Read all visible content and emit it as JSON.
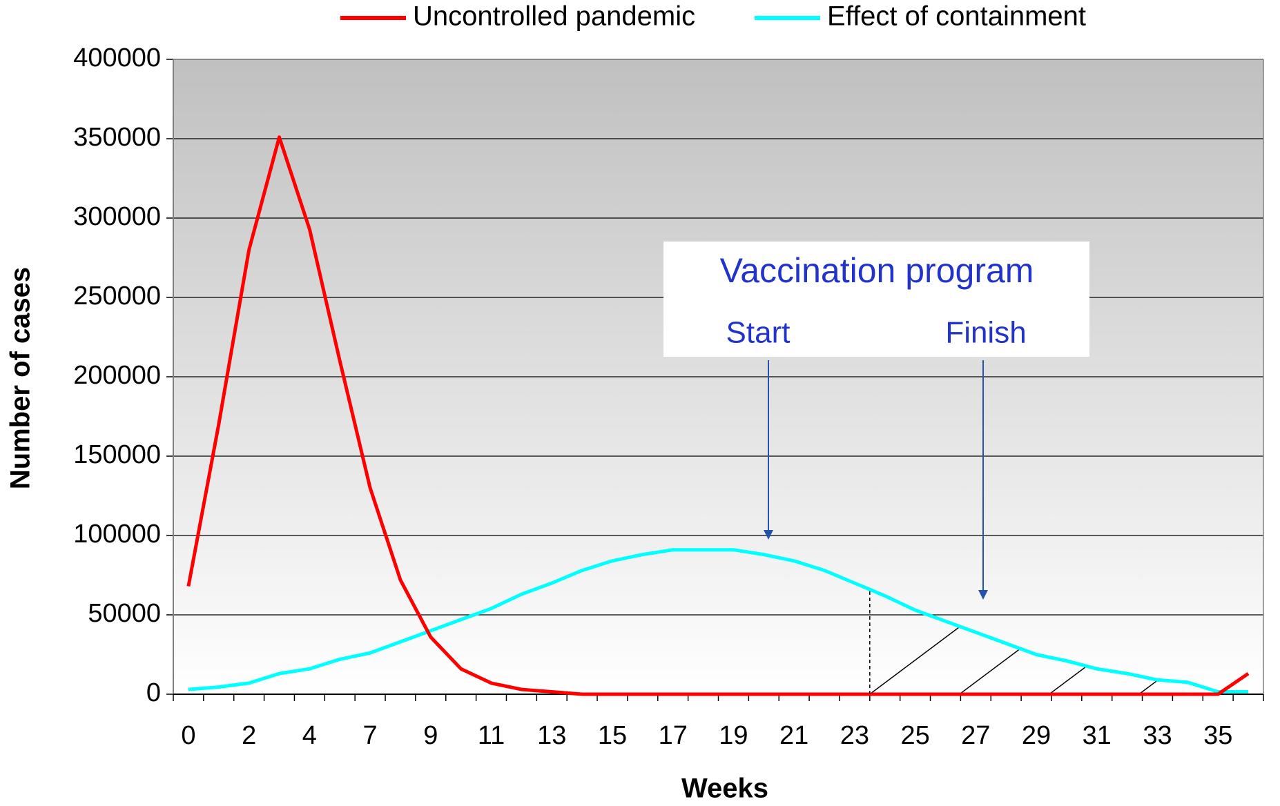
{
  "chart_data": {
    "type": "line",
    "categories": [
      "0",
      null,
      "2",
      null,
      "4",
      null,
      "7",
      null,
      "9",
      null,
      "11",
      null,
      "13",
      null,
      "15",
      null,
      "17",
      null,
      "19",
      null,
      "21",
      null,
      "23",
      null,
      "25",
      null,
      "27",
      null,
      "29",
      null,
      "31",
      null,
      "33",
      null,
      "35",
      null
    ],
    "series": [
      {
        "name": "Uncontrolled pandemic",
        "color": "#ff0000",
        "values": [
          68000,
          170000,
          280000,
          351000,
          293000,
          210000,
          130000,
          72000,
          36000,
          16000,
          7000,
          3000,
          1500,
          0,
          0,
          0,
          0,
          0,
          0,
          0,
          0,
          0,
          0,
          0,
          0,
          0,
          0,
          0,
          0,
          0,
          0,
          0,
          0,
          0,
          0,
          13000
        ]
      },
      {
        "name": "Effect of containment",
        "color": "#00ffff",
        "values": [
          3000,
          4500,
          7000,
          13000,
          16000,
          22000,
          26000,
          33000,
          40000,
          47000,
          54000,
          63000,
          70000,
          78000,
          84000,
          88000,
          91000,
          91000,
          91000,
          88000,
          84000,
          78000,
          70000,
          62000,
          53000,
          46000,
          39000,
          32000,
          25000,
          21000,
          16000,
          13000,
          9000,
          7500,
          1500,
          1500
        ]
      }
    ],
    "ylim": [
      0,
      400000
    ],
    "yticks": [
      0,
      50000,
      100000,
      150000,
      200000,
      250000,
      300000,
      350000,
      400000
    ],
    "grid": true,
    "x_label": "Weeks",
    "y_label": "Number of cases",
    "annotation": {
      "title": "Vaccination program",
      "start": "Start",
      "finish": "Finish"
    }
  }
}
